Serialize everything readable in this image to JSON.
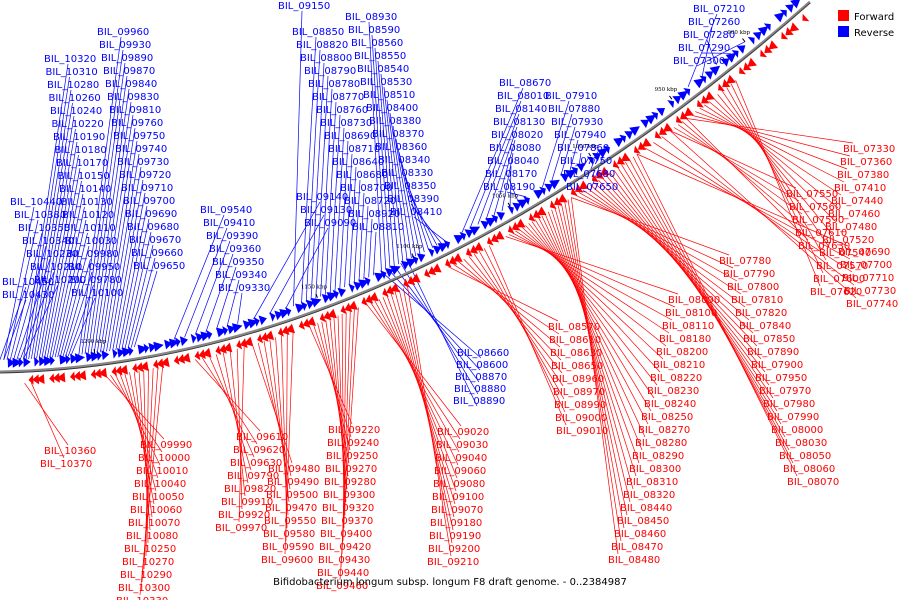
{
  "caption": "Bifidobacterium longum subsp. longum F8 draft genome. - 0..2384987",
  "legend": {
    "items": [
      {
        "label": "Forward",
        "color": "#ff0000"
      },
      {
        "label": "Reverse",
        "color": "#0000ff"
      }
    ]
  },
  "colors": {
    "forward": "#ff0000",
    "reverse": "#0000ff",
    "backbone": "#888888"
  },
  "tick_labels": [
    "900 kbp",
    "950 kbp",
    "1000 kbp",
    "1050 kbp",
    "1100 kbp",
    "1150 kbp",
    "1200 kbp"
  ],
  "reverse_labels": [
    "BIL_10320",
    "BIL_10310",
    "BIL_10280",
    "BIL_10260",
    "BIL_10240",
    "BIL_10220",
    "BIL_10190",
    "BIL_10180",
    "BIL_10170",
    "BIL_10150",
    "BIL_10140",
    "BIL_10130",
    "BIL_10120",
    "BIL_10110",
    "BIL_10030",
    "BIL_09980",
    "BIL_09950",
    "BIL_09780",
    "BIL_10100",
    "BIL_10440",
    "BIL_10380",
    "BIL_10350",
    "BIL_10340",
    "BIL_10230",
    "BIL_10210",
    "BIL_10200",
    "BIL_10450",
    "BIL_10430",
    "BIL_09960",
    "BIL_09930",
    "BIL_09890",
    "BIL_09870",
    "BIL_09840",
    "BIL_09830",
    "BIL_09810",
    "BIL_09760",
    "BIL_09750",
    "BIL_09740",
    "BIL_09730",
    "BIL_09720",
    "BIL_09710",
    "BIL_09700",
    "BIL_09690",
    "BIL_09680",
    "BIL_09670",
    "BIL_09660",
    "BIL_09650",
    "BIL_09540",
    "BIL_09410",
    "BIL_09390",
    "BIL_09360",
    "BIL_09350",
    "BIL_09340",
    "BIL_09330",
    "BIL_09140",
    "BIL_09130",
    "BIL_09090",
    "BIL_09150",
    "BIL_08850",
    "BIL_08820",
    "BIL_08800",
    "BIL_08790",
    "BIL_08780",
    "BIL_08770",
    "BIL_08760",
    "BIL_08730",
    "BIL_08690",
    "BIL_08710",
    "BIL_08640",
    "BIL_08680",
    "BIL_08700",
    "BIL_08720",
    "BIL_08920",
    "BIL_08810",
    "BIL_08930",
    "BIL_08590",
    "BIL_08560",
    "BIL_08550",
    "BIL_08540",
    "BIL_08530",
    "BIL_08510",
    "BIL_08400",
    "BIL_08380",
    "BIL_08370",
    "BIL_08360",
    "BIL_08340",
    "BIL_08330",
    "BIL_08350",
    "BIL_08390",
    "BIL_08410",
    "BIL_08670",
    "BIL_08010",
    "BIL_08140",
    "BIL_08130",
    "BIL_08020",
    "BIL_08080",
    "BIL_08040",
    "BIL_08170",
    "BIL_08190",
    "BIL_07910",
    "BIL_07880",
    "BIL_07930",
    "BIL_07940",
    "BIL_07860",
    "BIL_07750",
    "BIL_07680",
    "BIL_07650",
    "BIL_07210",
    "BIL_07260",
    "BIL_07280",
    "BIL_07290",
    "BIL_07300",
    "BIL_08660",
    "BIL_08600",
    "BIL_08870",
    "BIL_08880",
    "BIL_08890"
  ],
  "forward_labels": [
    "BIL_07330",
    "BIL_07360",
    "BIL_07380",
    "BIL_07410",
    "BIL_07440",
    "BIL_07460",
    "BIL_07480",
    "BIL_07520",
    "BIL_07540",
    "BIL_07570",
    "BIL_07600",
    "BIL_07620",
    "BIL_07550",
    "BIL_07560",
    "BIL_07590",
    "BIL_07610",
    "BIL_07630",
    "BIL_07690",
    "BIL_07700",
    "BIL_07710",
    "BIL_07730",
    "BIL_07740",
    "BIL_07780",
    "BIL_07790",
    "BIL_07800",
    "BIL_07810",
    "BIL_07820",
    "BIL_07840",
    "BIL_07850",
    "BIL_07890",
    "BIL_07900",
    "BIL_07950",
    "BIL_07970",
    "BIL_07980",
    "BIL_07990",
    "BIL_08000",
    "BIL_08030",
    "BIL_08050",
    "BIL_08060",
    "BIL_08070",
    "BIL_08090",
    "BIL_08100",
    "BIL_08110",
    "BIL_08180",
    "BIL_08200",
    "BIL_08210",
    "BIL_08220",
    "BIL_08230",
    "BIL_08240",
    "BIL_08250",
    "BIL_08270",
    "BIL_08280",
    "BIL_08290",
    "BIL_08300",
    "BIL_08310",
    "BIL_08320",
    "BIL_08440",
    "BIL_08450",
    "BIL_08460",
    "BIL_08470",
    "BIL_08480",
    "BIL_08570",
    "BIL_08610",
    "BIL_08630",
    "BIL_08650",
    "BIL_08960",
    "BIL_08970",
    "BIL_08990",
    "BIL_09000",
    "BIL_09010",
    "BIL_09020",
    "BIL_09030",
    "BIL_09040",
    "BIL_09060",
    "BIL_09080",
    "BIL_09100",
    "BIL_09070",
    "BIL_09180",
    "BIL_09190",
    "BIL_09200",
    "BIL_09210",
    "BIL_09220",
    "BIL_09240",
    "BIL_09250",
    "BIL_09270",
    "BIL_09280",
    "BIL_09300",
    "BIL_09320",
    "BIL_09370",
    "BIL_09400",
    "BIL_09420",
    "BIL_09430",
    "BIL_09440",
    "BIL_09460",
    "BIL_09480",
    "BIL_09490",
    "BIL_09500",
    "BIL_09470",
    "BIL_09550",
    "BIL_09580",
    "BIL_09590",
    "BIL_09600",
    "BIL_09610",
    "BIL_09620",
    "BIL_09630",
    "BIL_09790",
    "BIL_09820",
    "BIL_09910",
    "BIL_09920",
    "BIL_09970",
    "BIL_09990",
    "BIL_10000",
    "BIL_10010",
    "BIL_10040",
    "BIL_10050",
    "BIL_10060",
    "BIL_10070",
    "BIL_10080",
    "BIL_10250",
    "BIL_10270",
    "BIL_10290",
    "BIL_10300",
    "BIL_10330",
    "BIL_10360",
    "BIL_10370"
  ]
}
